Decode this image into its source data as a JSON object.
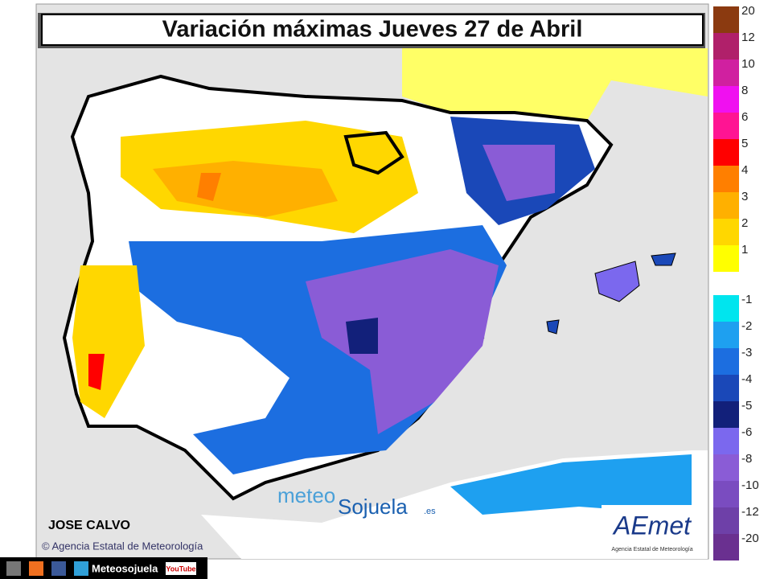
{
  "header": {
    "title": "Variación máximas Jueves 27 de Abril"
  },
  "legend": {
    "positive": [
      {
        "value": 20,
        "color": "#8b3a10"
      },
      {
        "value": 12,
        "color": "#b0206a"
      },
      {
        "value": 10,
        "color": "#d020a0"
      },
      {
        "value": 8,
        "color": "#f010f0"
      },
      {
        "value": 6,
        "color": "#ff1493"
      },
      {
        "value": 5,
        "color": "#ff0000"
      },
      {
        "value": 4,
        "color": "#ff7f00"
      },
      {
        "value": 3,
        "color": "#ffb000"
      },
      {
        "value": 2,
        "color": "#ffd700"
      },
      {
        "value": 1,
        "color": "#ffff00"
      }
    ],
    "negative": [
      {
        "value": -1,
        "color": "#00e5ee"
      },
      {
        "value": -2,
        "color": "#1ea0f0"
      },
      {
        "value": -3,
        "color": "#1c6ee0"
      },
      {
        "value": -4,
        "color": "#1a48b8"
      },
      {
        "value": -5,
        "color": "#12207a"
      },
      {
        "value": -6,
        "color": "#7b68ee"
      },
      {
        "value": -8,
        "color": "#8a5cd6"
      },
      {
        "value": -10,
        "color": "#7a4cc0"
      },
      {
        "value": -12,
        "color": "#6e40a8"
      },
      {
        "value": -20,
        "color": "#6a3090"
      }
    ]
  },
  "credits": {
    "author": "JOSE CALVO",
    "agency": "© Agencia Estatal de Meteorología",
    "brand_left": "meteo",
    "brand_right": "Sojuela",
    "brand_suffix": ".es",
    "aemet_logo": "AEmet",
    "aemet_sub": "Agencia Estatal de Meteorología",
    "social": "Meteosojuela",
    "youtube": "YouTube"
  }
}
